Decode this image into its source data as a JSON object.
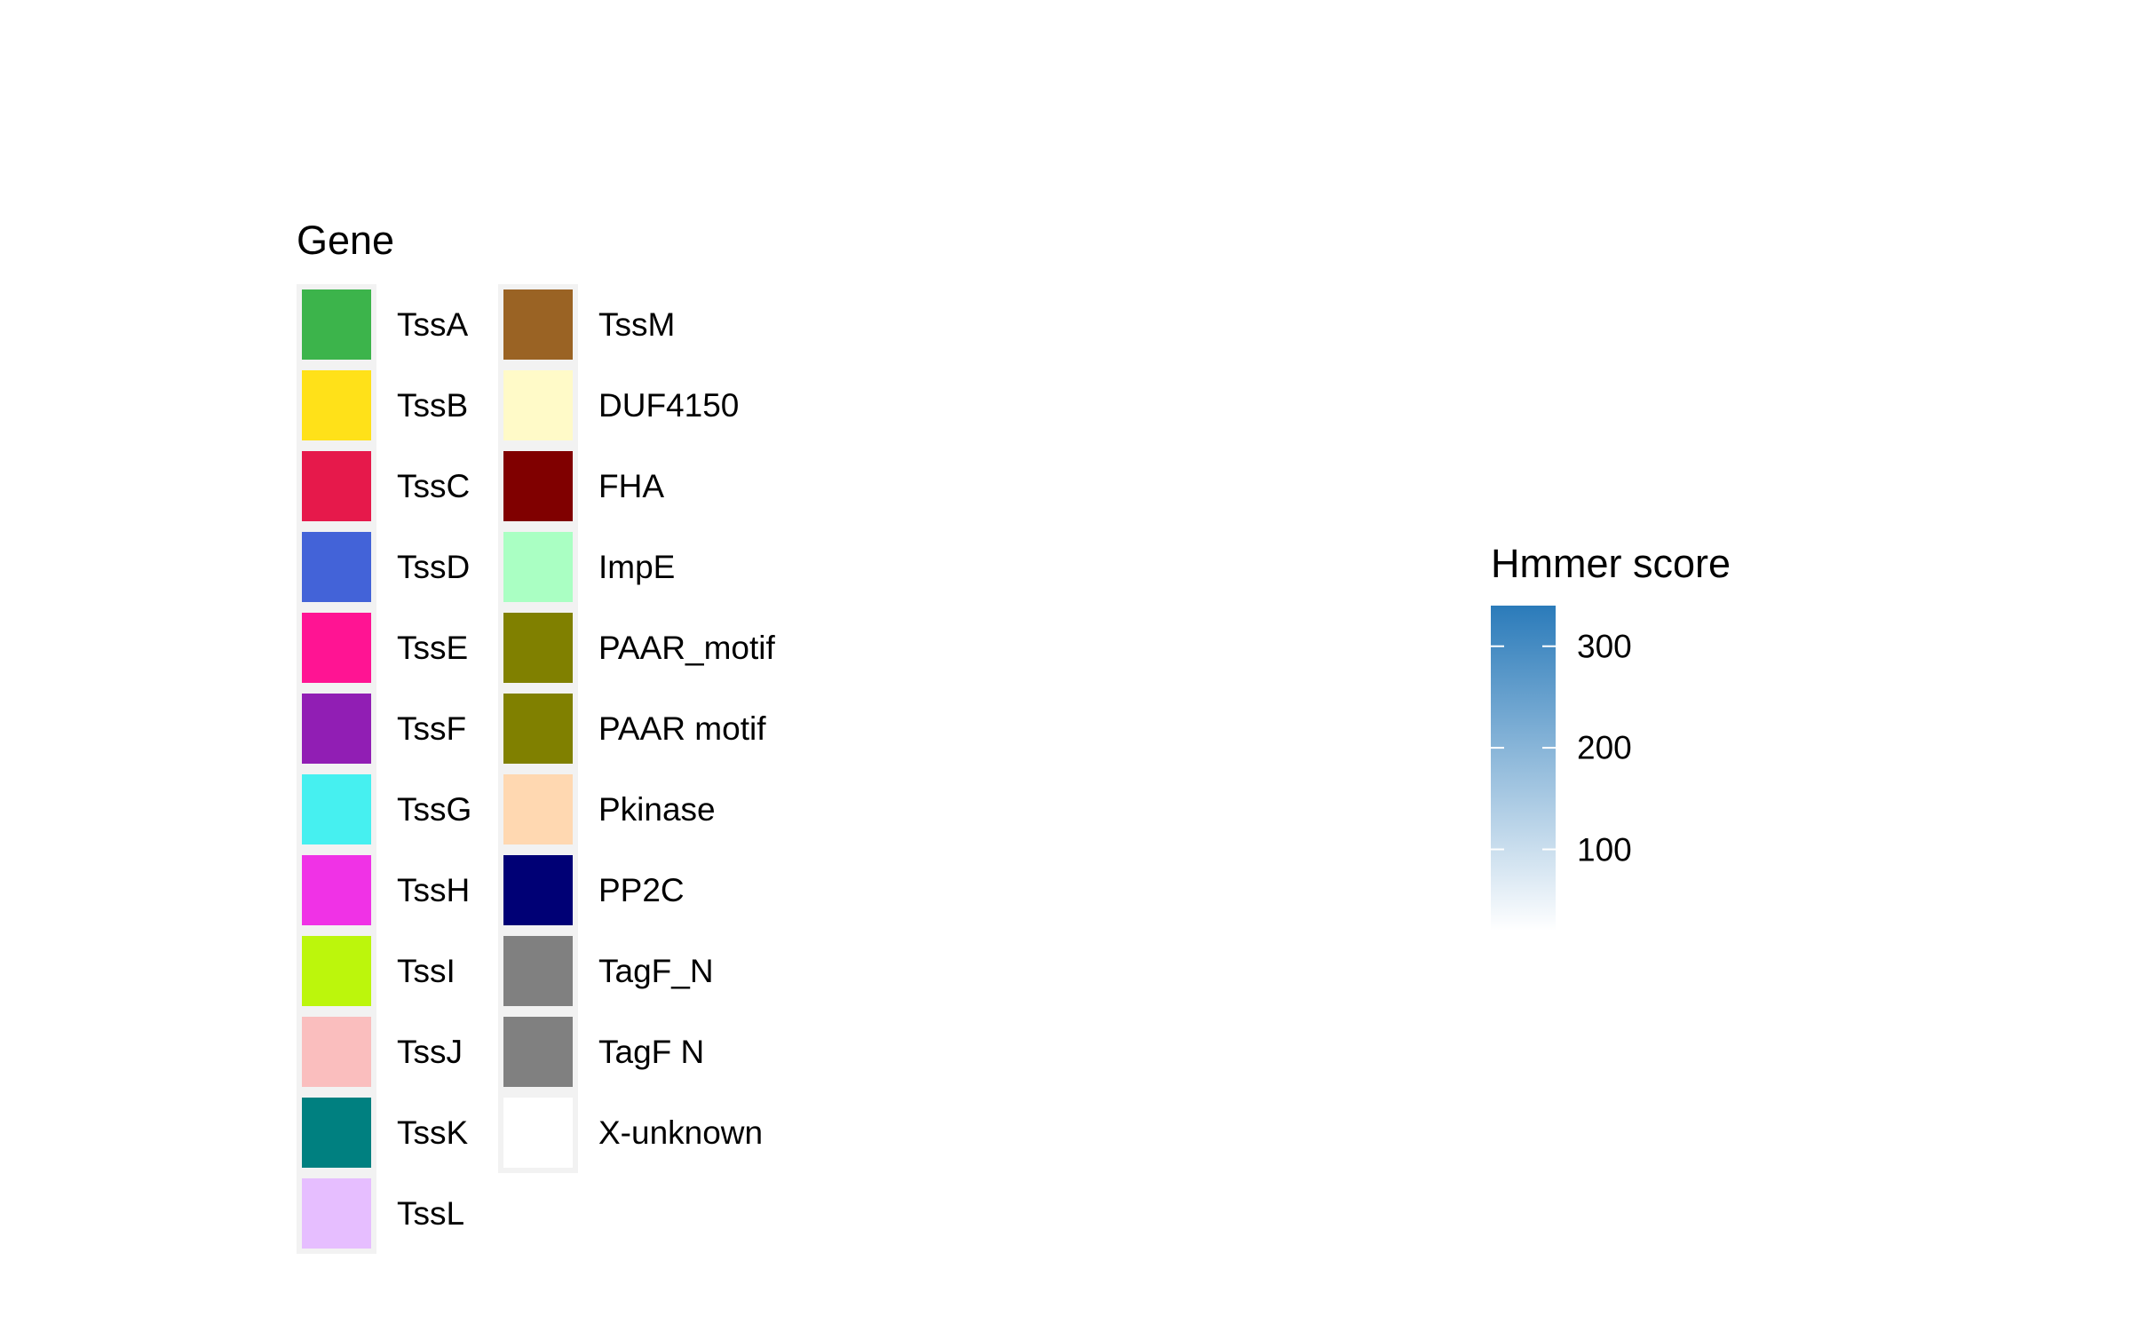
{
  "chart_data": {
    "type": "legend",
    "gene_legend": {
      "title": "Gene",
      "entries": [
        {
          "label": "TssA",
          "color": "#3cb44b"
        },
        {
          "label": "TssB",
          "color": "#ffe119"
        },
        {
          "label": "TssC",
          "color": "#e6194b"
        },
        {
          "label": "TssD",
          "color": "#4363d8"
        },
        {
          "label": "TssE",
          "color": "#ff1493"
        },
        {
          "label": "TssF",
          "color": "#911eb4"
        },
        {
          "label": "TssG",
          "color": "#46f0f0"
        },
        {
          "label": "TssH",
          "color": "#f032e6"
        },
        {
          "label": "TssI",
          "color": "#bcf60c"
        },
        {
          "label": "TssJ",
          "color": "#fabebe"
        },
        {
          "label": "TssK",
          "color": "#008080"
        },
        {
          "label": "TssL",
          "color": "#e6beff"
        },
        {
          "label": "TssM",
          "color": "#9a6324"
        },
        {
          "label": "DUF4150",
          "color": "#fffac8"
        },
        {
          "label": "FHA",
          "color": "#800000"
        },
        {
          "label": "ImpE",
          "color": "#aaffc3"
        },
        {
          "label": "PAAR_motif",
          "color": "#808000"
        },
        {
          "label": "PAAR motif",
          "color": "#808000"
        },
        {
          "label": "Pkinase",
          "color": "#ffd8b1"
        },
        {
          "label": "PP2C",
          "color": "#000075"
        },
        {
          "label": "TagF_N",
          "color": "#808080"
        },
        {
          "label": "TagF N",
          "color": "#808080"
        },
        {
          "label": "X-unknown",
          "color": "#ffffff"
        }
      ]
    },
    "score_legend": {
      "title": "Hmmer score",
      "range": [
        20,
        340
      ],
      "ticks": [
        100,
        200,
        300
      ],
      "tick_labels": [
        "100",
        "200",
        "300"
      ],
      "color_low": "#ffffff",
      "color_high": "#2b7bba"
    }
  }
}
